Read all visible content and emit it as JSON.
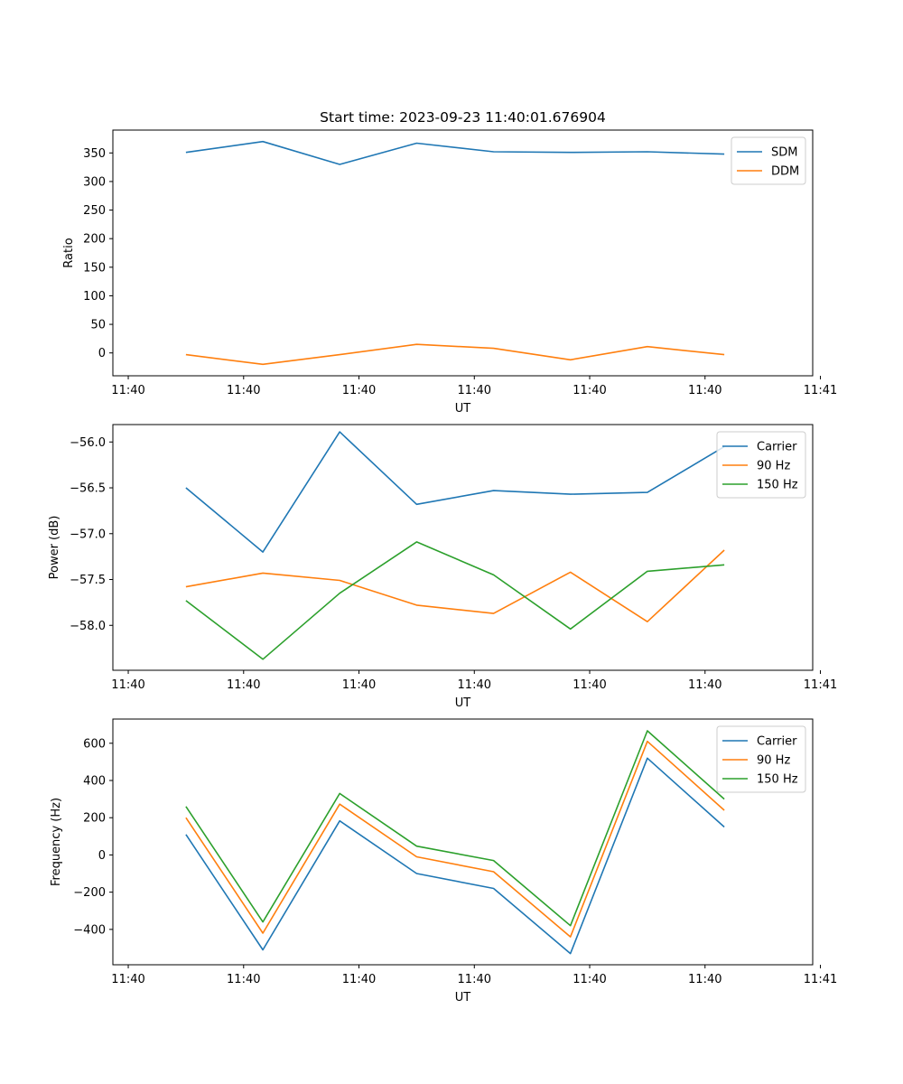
{
  "chart_data": [
    {
      "type": "line",
      "title": "Start time: 2023-09-23 11:40:01.676904",
      "xlabel": "UT",
      "ylabel": "Ratio",
      "xlim": [
        -0.2,
        8.9
      ],
      "ylim": [
        -40,
        390
      ],
      "x": [
        0.75,
        1.75,
        2.75,
        3.75,
        4.75,
        5.75,
        6.75,
        7.75
      ],
      "xticks": [
        0,
        1.5,
        3,
        4.5,
        6,
        7.5,
        9
      ],
      "xtick_labels": [
        "11:40",
        "11:40",
        "11:40",
        "11:40",
        "11:40",
        "11:40",
        "11:41"
      ],
      "yticks": [
        0,
        50,
        100,
        150,
        200,
        250,
        300,
        350
      ],
      "ytick_labels": [
        "0",
        "50",
        "100",
        "150",
        "200",
        "250",
        "300",
        "350"
      ],
      "legend": "upper-right",
      "series": [
        {
          "name": "SDM",
          "color": "#1f77b4",
          "values": [
            351,
            370,
            330,
            367,
            352,
            351,
            352,
            348
          ]
        },
        {
          "name": "DDM",
          "color": "#ff7f0e",
          "values": [
            -3,
            -20,
            -3,
            15,
            8,
            -12,
            11,
            -3
          ]
        }
      ]
    },
    {
      "type": "line",
      "title": "",
      "xlabel": "UT",
      "ylabel": "Power (dB)",
      "xlim": [
        -0.2,
        8.9
      ],
      "ylim": [
        -58.49,
        -55.81
      ],
      "x": [
        0.75,
        1.75,
        2.75,
        3.75,
        4.75,
        5.75,
        6.75,
        7.75
      ],
      "xticks": [
        0,
        1.5,
        3,
        4.5,
        6,
        7.5,
        9
      ],
      "xtick_labels": [
        "11:40",
        "11:40",
        "11:40",
        "11:40",
        "11:40",
        "11:40",
        "11:41"
      ],
      "yticks": [
        -58.0,
        -57.5,
        -57.0,
        -56.5,
        -56.0
      ],
      "ytick_labels": [
        "−58.0",
        "−57.5",
        "−57.0",
        "−56.5",
        "−56.0"
      ],
      "legend": "upper-right",
      "series": [
        {
          "name": "Carrier",
          "color": "#1f77b4",
          "values": [
            -56.5,
            -57.2,
            -55.89,
            -56.68,
            -56.53,
            -56.57,
            -56.55,
            -56.05
          ]
        },
        {
          "name": "90 Hz",
          "color": "#ff7f0e",
          "values": [
            -57.58,
            -57.43,
            -57.51,
            -57.78,
            -57.87,
            -57.42,
            -57.96,
            -57.18
          ]
        },
        {
          "name": "150 Hz",
          "color": "#2ca02c",
          "values": [
            -57.73,
            -58.37,
            -57.65,
            -57.09,
            -57.45,
            -58.04,
            -57.41,
            -57.34
          ]
        }
      ]
    },
    {
      "type": "line",
      "title": "",
      "xlabel": "UT",
      "ylabel": "Frequency (Hz)",
      "xlim": [
        -0.2,
        8.9
      ],
      "ylim": [
        -590,
        730
      ],
      "x": [
        0.75,
        1.75,
        2.75,
        3.75,
        4.75,
        5.75,
        6.75,
        7.75
      ],
      "xticks": [
        0,
        1.5,
        3,
        4.5,
        6,
        7.5,
        9
      ],
      "xtick_labels": [
        "11:40",
        "11:40",
        "11:40",
        "11:40",
        "11:40",
        "11:40",
        "11:41"
      ],
      "yticks": [
        -400,
        -200,
        0,
        200,
        400,
        600
      ],
      "ytick_labels": [
        "−400",
        "−200",
        "0",
        "200",
        "400",
        "600"
      ],
      "legend": "upper-right",
      "series": [
        {
          "name": "Carrier",
          "color": "#1f77b4",
          "values": [
            110,
            -510,
            183,
            -100,
            -180,
            -530,
            520,
            150
          ]
        },
        {
          "name": "90 Hz",
          "color": "#ff7f0e",
          "values": [
            200,
            -420,
            273,
            -10,
            -90,
            -440,
            610,
            240
          ]
        },
        {
          "name": "150 Hz",
          "color": "#2ca02c",
          "values": [
            260,
            -360,
            330,
            47,
            -30,
            -380,
            667,
            300
          ]
        }
      ]
    }
  ]
}
